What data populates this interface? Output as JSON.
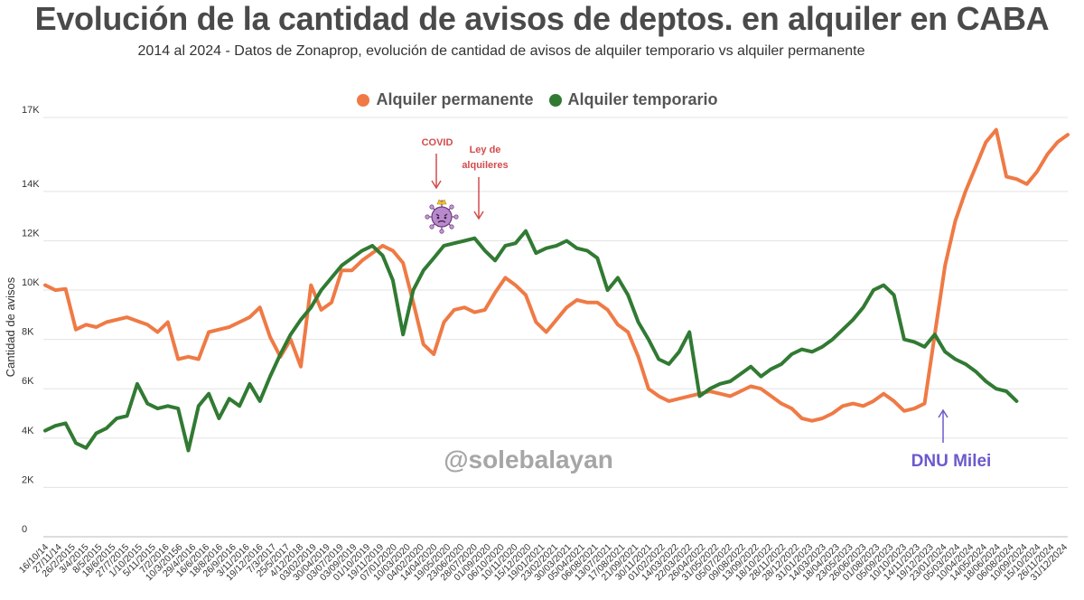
{
  "chart_data": {
    "type": "line",
    "title": "Evolución de la cantidad de avisos de deptos. en alquiler en CABA",
    "subtitle": "2014 al 2024 - Datos de Zonaprop, evolución de cantidad de avisos de  alquiler temporario vs alquiler permanente",
    "ylabel": "Cantidad de avisos",
    "xlabel": "",
    "ylim": [
      0,
      17000
    ],
    "grid": true,
    "legend_position": "top-center",
    "y_ticks": [
      {
        "value": 0,
        "label": "0"
      },
      {
        "value": 2000,
        "label": "2K"
      },
      {
        "value": 4000,
        "label": "4K"
      },
      {
        "value": 6000,
        "label": "6K"
      },
      {
        "value": 8000,
        "label": "8K"
      },
      {
        "value": 10000,
        "label": "10K"
      },
      {
        "value": 12000,
        "label": "12K"
      },
      {
        "value": 14000,
        "label": "14K"
      },
      {
        "value": 17000,
        "label": "17K"
      }
    ],
    "x_tick_labels": [
      "16/10/14",
      "27/11/14",
      "26/2/2015",
      "3/4/2015",
      "8/5/2015",
      "18/6/2015",
      "27/7/2015",
      "1/10/2015",
      "5/11/2015",
      "7/2/2016",
      "10/3/20156",
      "29/4/2016",
      "16/6/2016",
      "18/8/2016",
      "26/9/2016",
      "3/11/2016",
      "19/12/2016",
      "7/3/2017",
      "25/5/2017",
      "4/12/2018",
      "03/02/2019",
      "30/04/2019",
      "03/07/2019",
      "03/09/2019",
      "01/10/2019",
      "19/11/2019",
      "07/01/2020",
      "10/03/2020",
      "04/02/2020",
      "14/04/2020",
      "19/05/2020",
      "23/06/2020",
      "28/07/2020",
      "01/09/2020",
      "06/10/2020",
      "10/11/2020",
      "15/12/2020",
      "19/01/2021",
      "23/02/2021",
      "30/03/2021",
      "05/04/2021",
      "06/08/2021",
      "13/07/2021",
      "17/08/2021",
      "21/09/2021",
      "30/11/2021",
      "01/02/2022",
      "14/03/2022",
      "22/03/2022",
      "26/04/2022",
      "31/05/2022",
      "05/07/2022",
      "09/08/2022",
      "13/09/2022",
      "18/10/2022",
      "28/11/2022",
      "28/12/2022",
      "31/01/2023",
      "14/03/2023",
      "18/04/2023",
      "23/05/2023",
      "26/06/2023",
      "01/08/2023",
      "05/09/2023",
      "10/10/2023",
      "14/11/2023",
      "19/12/2023",
      "23/01/2024",
      "05/03/2024",
      "10/04/2024",
      "14/05/2024",
      "18/06/2024",
      "06/08/2024",
      "10/09/2024",
      "15/10/2024",
      "26/11/2024",
      "31/12/2024"
    ],
    "series": [
      {
        "name": "Alquiler permanente",
        "color": "#ef7a45",
        "values": [
          [
            0,
            10200
          ],
          [
            1,
            10000
          ],
          [
            2,
            10050
          ],
          [
            3,
            8400
          ],
          [
            4,
            8600
          ],
          [
            5,
            8500
          ],
          [
            6,
            8700
          ],
          [
            7,
            8800
          ],
          [
            8,
            8900
          ],
          [
            9,
            8750
          ],
          [
            10,
            8600
          ],
          [
            11,
            8300
          ],
          [
            12,
            8700
          ],
          [
            13,
            7200
          ],
          [
            14,
            7300
          ],
          [
            15,
            7200
          ],
          [
            16,
            8300
          ],
          [
            17,
            8400
          ],
          [
            18,
            8500
          ],
          [
            19,
            8700
          ],
          [
            20,
            8900
          ],
          [
            21,
            9300
          ],
          [
            22,
            8100
          ],
          [
            23,
            7300
          ],
          [
            24,
            8000
          ],
          [
            25,
            6900
          ],
          [
            26,
            10200
          ],
          [
            27,
            9200
          ],
          [
            28,
            9500
          ],
          [
            29,
            10800
          ],
          [
            30,
            10800
          ],
          [
            31,
            11200
          ],
          [
            32,
            11500
          ],
          [
            33,
            11800
          ],
          [
            34,
            11600
          ],
          [
            35,
            11100
          ],
          [
            36,
            9500
          ],
          [
            37,
            7800
          ],
          [
            38,
            7400
          ],
          [
            39,
            8700
          ],
          [
            40,
            9200
          ],
          [
            41,
            9300
          ],
          [
            42,
            9100
          ],
          [
            43,
            9200
          ],
          [
            44,
            9900
          ],
          [
            45,
            10500
          ],
          [
            46,
            10200
          ],
          [
            47,
            9800
          ],
          [
            48,
            8700
          ],
          [
            49,
            8300
          ],
          [
            50,
            8800
          ],
          [
            51,
            9300
          ],
          [
            52,
            9600
          ],
          [
            53,
            9500
          ],
          [
            54,
            9500
          ],
          [
            55,
            9200
          ],
          [
            56,
            8600
          ],
          [
            57,
            8300
          ],
          [
            58,
            7300
          ],
          [
            59,
            6000
          ],
          [
            60,
            5700
          ],
          [
            61,
            5500
          ],
          [
            62,
            5600
          ],
          [
            63,
            5700
          ],
          [
            64,
            5800
          ],
          [
            65,
            5900
          ],
          [
            66,
            5800
          ],
          [
            67,
            5700
          ],
          [
            68,
            5900
          ],
          [
            69,
            6100
          ],
          [
            70,
            6000
          ],
          [
            71,
            5700
          ],
          [
            72,
            5400
          ],
          [
            73,
            5200
          ],
          [
            74,
            4800
          ],
          [
            75,
            4700
          ],
          [
            76,
            4800
          ],
          [
            77,
            5000
          ],
          [
            78,
            5300
          ],
          [
            79,
            5400
          ],
          [
            80,
            5300
          ],
          [
            81,
            5500
          ],
          [
            82,
            5800
          ],
          [
            83,
            5500
          ],
          [
            84,
            5100
          ],
          [
            85,
            5200
          ],
          [
            86,
            5400
          ],
          [
            87,
            8200
          ],
          [
            88,
            11000
          ],
          [
            89,
            12800
          ],
          [
            90,
            14000
          ],
          [
            91,
            15000
          ],
          [
            92,
            16000
          ],
          [
            93,
            16500
          ],
          [
            94,
            14600
          ],
          [
            95,
            14500
          ],
          [
            96,
            14300
          ],
          [
            97,
            14800
          ],
          [
            98,
            15500
          ],
          [
            99,
            16000
          ],
          [
            100,
            16300
          ]
        ]
      },
      {
        "name": "Alquiler temporario",
        "color": "#317a33",
        "values": [
          [
            0,
            4300
          ],
          [
            1,
            4500
          ],
          [
            2,
            4600
          ],
          [
            3,
            3800
          ],
          [
            4,
            3600
          ],
          [
            5,
            4200
          ],
          [
            6,
            4400
          ],
          [
            7,
            4800
          ],
          [
            8,
            4900
          ],
          [
            9,
            6200
          ],
          [
            10,
            5400
          ],
          [
            11,
            5200
          ],
          [
            12,
            5300
          ],
          [
            13,
            5200
          ],
          [
            14,
            3500
          ],
          [
            15,
            5300
          ],
          [
            16,
            5800
          ],
          [
            17,
            4800
          ],
          [
            18,
            5600
          ],
          [
            19,
            5300
          ],
          [
            20,
            6200
          ],
          [
            21,
            5500
          ],
          [
            22,
            6500
          ],
          [
            23,
            7400
          ],
          [
            24,
            8200
          ],
          [
            25,
            8800
          ],
          [
            26,
            9300
          ],
          [
            27,
            10000
          ],
          [
            28,
            10500
          ],
          [
            29,
            11000
          ],
          [
            30,
            11300
          ],
          [
            31,
            11600
          ],
          [
            32,
            11800
          ],
          [
            33,
            11400
          ],
          [
            34,
            10400
          ],
          [
            35,
            8200
          ],
          [
            36,
            10000
          ],
          [
            37,
            10800
          ],
          [
            38,
            11300
          ],
          [
            39,
            11800
          ],
          [
            40,
            11900
          ],
          [
            41,
            12000
          ],
          [
            42,
            12100
          ],
          [
            43,
            11600
          ],
          [
            44,
            11200
          ],
          [
            45,
            11800
          ],
          [
            46,
            11900
          ],
          [
            47,
            12400
          ],
          [
            48,
            11500
          ],
          [
            49,
            11700
          ],
          [
            50,
            11800
          ],
          [
            51,
            12000
          ],
          [
            52,
            11700
          ],
          [
            53,
            11600
          ],
          [
            54,
            11300
          ],
          [
            55,
            10000
          ],
          [
            56,
            10500
          ],
          [
            57,
            9800
          ],
          [
            58,
            8700
          ],
          [
            59,
            8000
          ],
          [
            60,
            7200
          ],
          [
            61,
            7000
          ],
          [
            62,
            7500
          ],
          [
            63,
            8300
          ],
          [
            64,
            5700
          ],
          [
            65,
            6000
          ],
          [
            66,
            6200
          ],
          [
            67,
            6300
          ],
          [
            68,
            6600
          ],
          [
            69,
            6900
          ],
          [
            70,
            6500
          ],
          [
            71,
            6800
          ],
          [
            72,
            7000
          ],
          [
            73,
            7400
          ],
          [
            74,
            7600
          ],
          [
            75,
            7500
          ],
          [
            76,
            7700
          ],
          [
            77,
            8000
          ],
          [
            78,
            8400
          ],
          [
            79,
            8800
          ],
          [
            80,
            9300
          ],
          [
            81,
            10000
          ],
          [
            82,
            10200
          ],
          [
            83,
            9800
          ],
          [
            84,
            8000
          ],
          [
            85,
            7900
          ],
          [
            86,
            7700
          ],
          [
            87,
            8200
          ],
          [
            88,
            7500
          ],
          [
            89,
            7200
          ],
          [
            90,
            7000
          ],
          [
            91,
            6700
          ],
          [
            92,
            6300
          ],
          [
            93,
            6000
          ],
          [
            94,
            5900
          ],
          [
            95,
            5500
          ]
        ]
      }
    ],
    "annotations": [
      {
        "id": "covid",
        "text": "COVID",
        "color": "#d24b4b"
      },
      {
        "id": "ley-line1",
        "text": "Ley de",
        "color": "#d24b4b"
      },
      {
        "id": "ley-line2",
        "text": "alquileres",
        "color": "#d24b4b"
      },
      {
        "id": "dnu",
        "text": "DNU Milei",
        "color": "#6a5acd"
      }
    ],
    "watermark": "@solebalayan"
  }
}
